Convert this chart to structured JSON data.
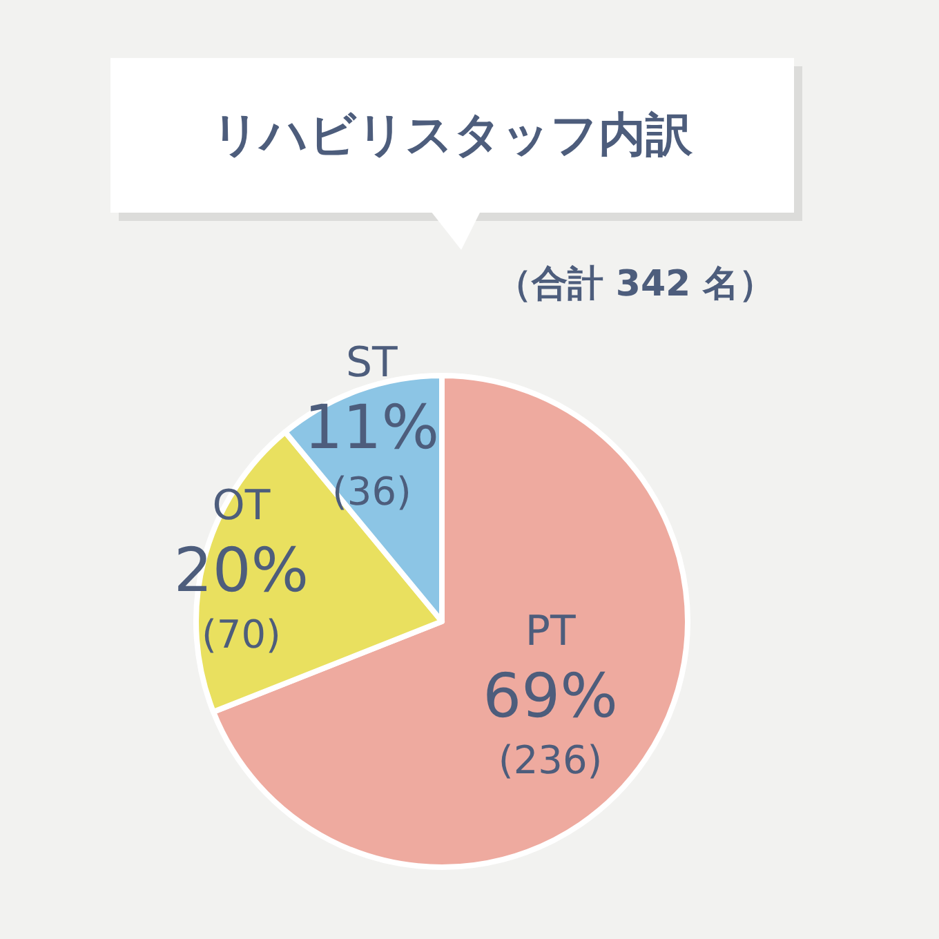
{
  "chart_data": {
    "type": "pie",
    "title": "リハビリスタッフ内訳",
    "subtitle": "（合計 342 名）",
    "categories": [
      "PT",
      "OT",
      "ST"
    ],
    "values": [
      69,
      20,
      11
    ],
    "value_labels": [
      "69%\n(236)",
      "20%\n(70)",
      "11%\n(36)"
    ],
    "colors": [
      "#eeaa9f",
      "#e9e05f",
      "#8cc5e5"
    ],
    "legend": false
  }
}
